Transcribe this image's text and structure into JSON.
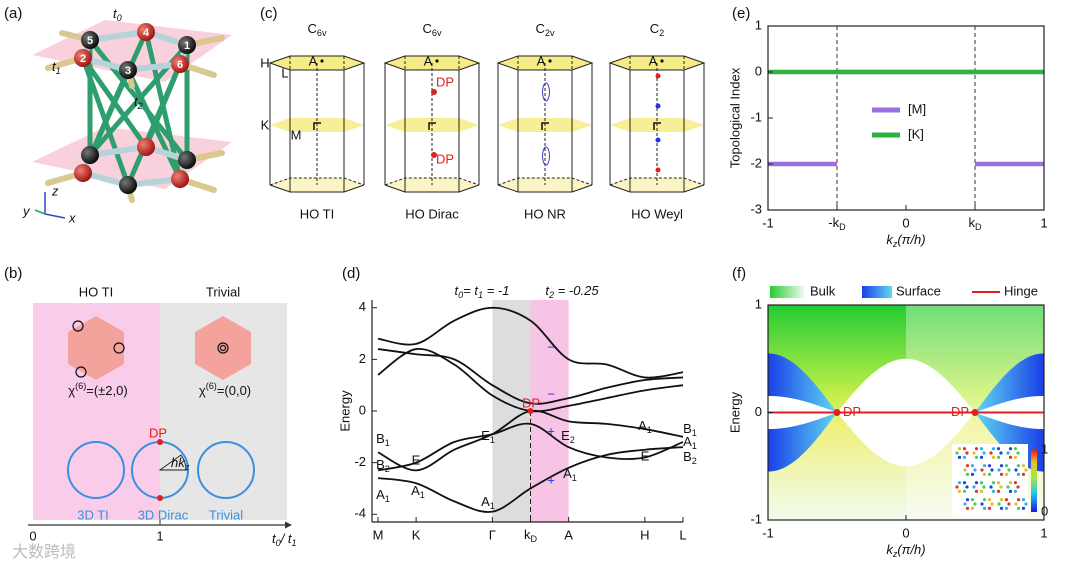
{
  "panel_labels": [
    "(a)",
    "(b)",
    "(c)",
    "(d)",
    "(e)",
    "(f)"
  ],
  "a": {
    "sites": [
      "1",
      "2",
      "3",
      "4",
      "5",
      "6"
    ],
    "hoppings": [
      [
        "t",
        "0"
      ],
      [
        "t",
        "1"
      ],
      [
        "t",
        "2"
      ]
    ],
    "axes": [
      "z",
      "y",
      "x"
    ]
  },
  "b": {
    "phases": [
      "HO TI",
      "Trivial"
    ],
    "indices": [
      [
        "χ",
        "(6)",
        "=(±2,0)"
      ],
      [
        "χ",
        "(6)",
        "=(0,0)"
      ]
    ],
    "states": [
      "3D TI",
      "3D Dirac",
      "Trivial"
    ],
    "point": "DP",
    "angle": [
      "hk",
      "z"
    ],
    "ticks": [
      "0",
      "1"
    ],
    "xlabel": [
      "t",
      "0",
      "/ t",
      "1"
    ]
  },
  "c": {
    "groups": [
      [
        "C",
        "6v"
      ],
      [
        "C",
        "6v"
      ],
      [
        "C",
        "2v"
      ],
      [
        "C",
        "2"
      ]
    ],
    "names": [
      "HO TI",
      "HO Dirac",
      "HO NR",
      "HO Weyl"
    ],
    "points": [
      "H",
      "L",
      "K",
      "M",
      "A"
    ],
    "point": "DP"
  },
  "chart_data": [
    {
      "type": "line",
      "smooth": true,
      "frame": "left-bottom",
      "ylabel": "Energy",
      "notes": [
        [
          "t",
          "0",
          "= t",
          "1",
          " = -1"
        ],
        [
          "t",
          "2",
          " = -0.25"
        ]
      ],
      "xlim": [
        0,
        8
      ],
      "ylim": [
        -4.3,
        4.3
      ],
      "yticks": [
        -4,
        -2,
        0,
        2,
        4
      ],
      "xticks": [
        {
          "value": 0,
          "label": "M"
        },
        {
          "value": 1,
          "label": "K"
        },
        {
          "value": 3,
          "label": "Γ"
        },
        {
          "value": 4,
          "label": [
            "k",
            "D"
          ]
        },
        {
          "value": 5,
          "label": "A"
        },
        {
          "value": 7,
          "label": "H"
        },
        {
          "value": 8,
          "label": "L"
        }
      ],
      "shading": [
        {
          "from": 3,
          "to": 4,
          "color": "#dddddd"
        },
        {
          "from": 4,
          "to": 5,
          "color": "#f8c4e6"
        }
      ],
      "x": [
        0,
        1,
        2,
        3,
        4,
        5,
        6,
        7,
        8
      ],
      "series": [
        {
          "color": "#111111",
          "values": [
            2.8,
            2.6,
            3.5,
            4.0,
            3.5,
            2.0,
            1.8,
            1.3,
            1.5
          ]
        },
        {
          "color": "#111111",
          "values": [
            2.4,
            2.2,
            2.0,
            1.0,
            0.3,
            0.5,
            0.9,
            1.2,
            1.3
          ]
        },
        {
          "color": "#111111",
          "values": [
            1.4,
            2.4,
            1.8,
            0.6,
            0.0,
            0.2,
            0.5,
            0.8,
            1.0
          ]
        },
        {
          "color": "#111111",
          "values": [
            -1.6,
            -2.3,
            -1.5,
            -0.9,
            0.0,
            -0.4,
            -0.5,
            -0.7,
            -1.0
          ]
        },
        {
          "color": "#111111",
          "values": [
            -2.3,
            -2.0,
            -1.2,
            -0.9,
            -0.5,
            -1.4,
            -1.8,
            -1.8,
            -1.2
          ]
        },
        {
          "color": "#111111",
          "values": [
            -2.6,
            -2.8,
            -3.5,
            -3.9,
            -3.0,
            -2.2,
            -1.7,
            -1.5,
            -1.4
          ]
        }
      ],
      "labels": [
        [
          "B",
          "1"
        ],
        [
          "B",
          "2"
        ],
        [
          "A",
          "1"
        ],
        "E",
        [
          "A",
          "1"
        ],
        [
          "E",
          "1"
        ],
        [
          "A",
          "1"
        ],
        "DP",
        [
          "E",
          "2"
        ],
        [
          "A",
          "1"
        ],
        [
          "A",
          "1"
        ],
        "E",
        [
          "B",
          "1"
        ],
        [
          "A",
          "1"
        ],
        [
          "B",
          "2"
        ],
        "−",
        "−",
        "+",
        "+"
      ]
    },
    {
      "type": "line",
      "frame": "box",
      "ylabel": "Topological Index",
      "xlabel": [
        "k",
        "z",
        "(π/h)"
      ],
      "xlim": [
        -1,
        1
      ],
      "ylim": [
        -3,
        1
      ],
      "yticks": [
        -3,
        -2,
        -1,
        0,
        1
      ],
      "xticks": [
        -1,
        {
          "value": -0.5,
          "label": [
            "-k",
            "D"
          ]
        },
        0,
        {
          "value": 0.5,
          "label": [
            "k",
            "D"
          ]
        },
        1
      ],
      "series": [
        {
          "name": "[M]",
          "color": "#9b6fe0",
          "x": [
            -1,
            -0.5,
            null,
            -0.5,
            0.5,
            null,
            0.5,
            1
          ],
          "values": [
            -2,
            -2,
            null,
            0,
            0,
            null,
            -2,
            -2
          ]
        },
        {
          "name": "[K]",
          "color": "#2fb340",
          "x": [
            -1,
            1
          ],
          "values": [
            0,
            0
          ]
        }
      ]
    },
    {
      "type": "spectrum",
      "frame": "box",
      "ylabel": "Energy",
      "xlabel": [
        "k",
        "z",
        "(π/h)"
      ],
      "xlim": [
        -1,
        1
      ],
      "ylim": [
        -1,
        1
      ],
      "xticks": [
        -1,
        0,
        1
      ],
      "yticks": [
        -1,
        0,
        1
      ],
      "legend": [
        "Bulk",
        "Surface",
        "Hinge"
      ],
      "dirac_points": {
        "x": [
          -0.5,
          0.5
        ],
        "label": "DP"
      },
      "colorbar": {
        "ticks": [
          0,
          1
        ]
      }
    }
  ],
  "watermark": "大数跨境"
}
